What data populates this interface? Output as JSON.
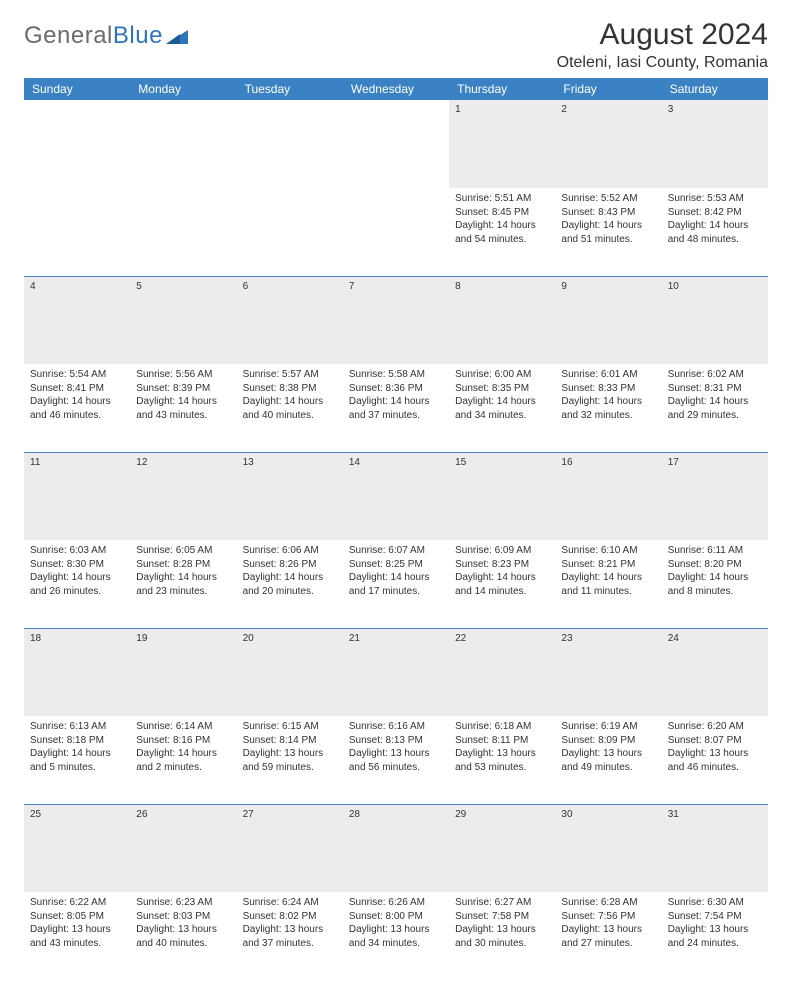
{
  "logo": {
    "text1": "General",
    "text2": "Blue"
  },
  "title": "August 2024",
  "location": "Oteleni, Iasi County, Romania",
  "header_bg": "#3a82c4",
  "daynum_bg": "#ececec",
  "days": [
    "Sunday",
    "Monday",
    "Tuesday",
    "Wednesday",
    "Thursday",
    "Friday",
    "Saturday"
  ],
  "weeks": [
    [
      null,
      null,
      null,
      null,
      {
        "n": "1",
        "sr": "5:51 AM",
        "ss": "8:45 PM",
        "dl": "14 hours and 54 minutes."
      },
      {
        "n": "2",
        "sr": "5:52 AM",
        "ss": "8:43 PM",
        "dl": "14 hours and 51 minutes."
      },
      {
        "n": "3",
        "sr": "5:53 AM",
        "ss": "8:42 PM",
        "dl": "14 hours and 48 minutes."
      }
    ],
    [
      {
        "n": "4",
        "sr": "5:54 AM",
        "ss": "8:41 PM",
        "dl": "14 hours and 46 minutes."
      },
      {
        "n": "5",
        "sr": "5:56 AM",
        "ss": "8:39 PM",
        "dl": "14 hours and 43 minutes."
      },
      {
        "n": "6",
        "sr": "5:57 AM",
        "ss": "8:38 PM",
        "dl": "14 hours and 40 minutes."
      },
      {
        "n": "7",
        "sr": "5:58 AM",
        "ss": "8:36 PM",
        "dl": "14 hours and 37 minutes."
      },
      {
        "n": "8",
        "sr": "6:00 AM",
        "ss": "8:35 PM",
        "dl": "14 hours and 34 minutes."
      },
      {
        "n": "9",
        "sr": "6:01 AM",
        "ss": "8:33 PM",
        "dl": "14 hours and 32 minutes."
      },
      {
        "n": "10",
        "sr": "6:02 AM",
        "ss": "8:31 PM",
        "dl": "14 hours and 29 minutes."
      }
    ],
    [
      {
        "n": "11",
        "sr": "6:03 AM",
        "ss": "8:30 PM",
        "dl": "14 hours and 26 minutes."
      },
      {
        "n": "12",
        "sr": "6:05 AM",
        "ss": "8:28 PM",
        "dl": "14 hours and 23 minutes."
      },
      {
        "n": "13",
        "sr": "6:06 AM",
        "ss": "8:26 PM",
        "dl": "14 hours and 20 minutes."
      },
      {
        "n": "14",
        "sr": "6:07 AM",
        "ss": "8:25 PM",
        "dl": "14 hours and 17 minutes."
      },
      {
        "n": "15",
        "sr": "6:09 AM",
        "ss": "8:23 PM",
        "dl": "14 hours and 14 minutes."
      },
      {
        "n": "16",
        "sr": "6:10 AM",
        "ss": "8:21 PM",
        "dl": "14 hours and 11 minutes."
      },
      {
        "n": "17",
        "sr": "6:11 AM",
        "ss": "8:20 PM",
        "dl": "14 hours and 8 minutes."
      }
    ],
    [
      {
        "n": "18",
        "sr": "6:13 AM",
        "ss": "8:18 PM",
        "dl": "14 hours and 5 minutes."
      },
      {
        "n": "19",
        "sr": "6:14 AM",
        "ss": "8:16 PM",
        "dl": "14 hours and 2 minutes."
      },
      {
        "n": "20",
        "sr": "6:15 AM",
        "ss": "8:14 PM",
        "dl": "13 hours and 59 minutes."
      },
      {
        "n": "21",
        "sr": "6:16 AM",
        "ss": "8:13 PM",
        "dl": "13 hours and 56 minutes."
      },
      {
        "n": "22",
        "sr": "6:18 AM",
        "ss": "8:11 PM",
        "dl": "13 hours and 53 minutes."
      },
      {
        "n": "23",
        "sr": "6:19 AM",
        "ss": "8:09 PM",
        "dl": "13 hours and 49 minutes."
      },
      {
        "n": "24",
        "sr": "6:20 AM",
        "ss": "8:07 PM",
        "dl": "13 hours and 46 minutes."
      }
    ],
    [
      {
        "n": "25",
        "sr": "6:22 AM",
        "ss": "8:05 PM",
        "dl": "13 hours and 43 minutes."
      },
      {
        "n": "26",
        "sr": "6:23 AM",
        "ss": "8:03 PM",
        "dl": "13 hours and 40 minutes."
      },
      {
        "n": "27",
        "sr": "6:24 AM",
        "ss": "8:02 PM",
        "dl": "13 hours and 37 minutes."
      },
      {
        "n": "28",
        "sr": "6:26 AM",
        "ss": "8:00 PM",
        "dl": "13 hours and 34 minutes."
      },
      {
        "n": "29",
        "sr": "6:27 AM",
        "ss": "7:58 PM",
        "dl": "13 hours and 30 minutes."
      },
      {
        "n": "30",
        "sr": "6:28 AM",
        "ss": "7:56 PM",
        "dl": "13 hours and 27 minutes."
      },
      {
        "n": "31",
        "sr": "6:30 AM",
        "ss": "7:54 PM",
        "dl": "13 hours and 24 minutes."
      }
    ]
  ],
  "labels": {
    "sunrise": "Sunrise:",
    "sunset": "Sunset:",
    "daylight": "Daylight:"
  }
}
